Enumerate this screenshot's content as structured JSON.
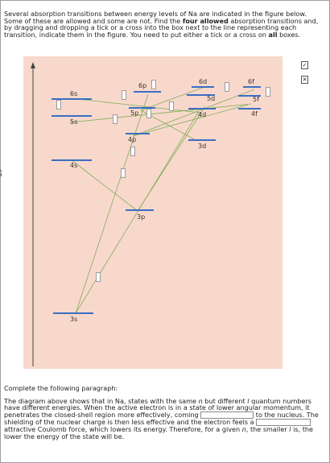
{
  "instructions": {
    "text_before_bold": "Several absorption transitions between energy levels of Na are indicated in the figure below. Some of these are allowed and some are not. Find the ",
    "bold": "four allowed",
    "text_middle": " absorption transitions and, by dragging and dropping a tick or a cross into the box next to the line representing each transition, indicate them in the figure. You need to put either a tick or a cross on ",
    "bold2": "all",
    "text_after": " boxes."
  },
  "axis": {
    "label": "energy"
  },
  "tokens": {
    "tick": "✓",
    "cross": "✕"
  },
  "levels": {
    "6s": "6s",
    "5s": "5s",
    "4s": "4s",
    "3s": "3s",
    "6p": "6p",
    "5p": "5p",
    "4p": "4p",
    "3p": "3p",
    "6d": "6d",
    "5d": "5d",
    "4d": "4d",
    "3d": "3d",
    "6f": "6f",
    "5f": "5f",
    "4f": "4f"
  },
  "paragraph": {
    "intro": "Complete the following paragraph:",
    "s1": "The diagram above shows that in Na, states with the same ",
    "n": "n",
    "s2": " but different ",
    "l": "l",
    "s3": " quantum numbers have different energies. When the active electron is in a state of lower angular momentum, it penetrates the closed-shell region more effectively, coming ",
    "blank1": "",
    "s4": " to the nucleus. The shielding of the nuclear charge is then less effective and the electron feels a ",
    "blank2": "",
    "s5": " attractive Coulomb force, which lowers its energy. Therefore, for a given ",
    "n2": "n",
    "s6": ", the smaller ",
    "l2": "l",
    "s7": " is, the lower the energy of the state will be."
  }
}
